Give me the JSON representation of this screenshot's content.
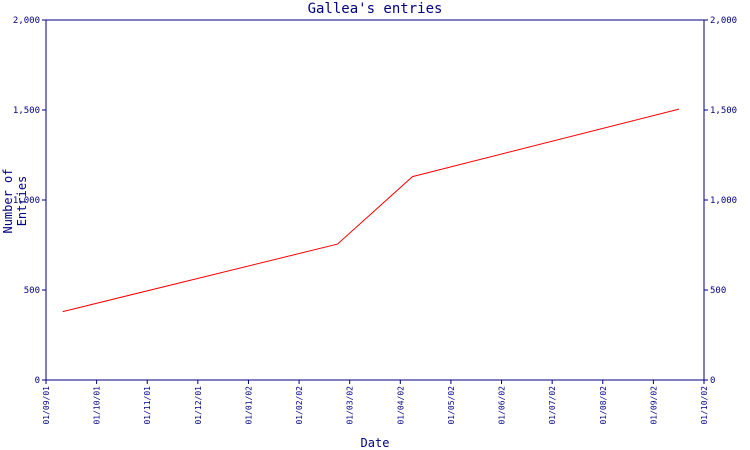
{
  "chart_data": {
    "type": "line",
    "title": "Gallea's entries",
    "xlabel": "Date",
    "ylabel": "Number of Entries",
    "x_ticks": [
      "01/09/01",
      "01/10/01",
      "01/11/01",
      "01/12/01",
      "01/01/02",
      "01/02/02",
      "01/03/02",
      "01/04/02",
      "01/05/02",
      "01/06/02",
      "01/07/02",
      "01/08/02",
      "01/09/02",
      "01/10/02"
    ],
    "y_ticks": [
      "0",
      "500",
      "1,000",
      "1,500",
      "2,000"
    ],
    "ylim": [
      0,
      2000
    ],
    "xlim": [
      "2001-09-01",
      "2002-10-01"
    ],
    "grid": false,
    "colors": {
      "axis": "#000080",
      "line": "#ff0000"
    },
    "series": [
      {
        "x": [
          "2001-09-11",
          "2002-02-23",
          "2002-04-09",
          "2002-09-16"
        ],
        "values": [
          380,
          755,
          1130,
          1505
        ]
      }
    ]
  }
}
